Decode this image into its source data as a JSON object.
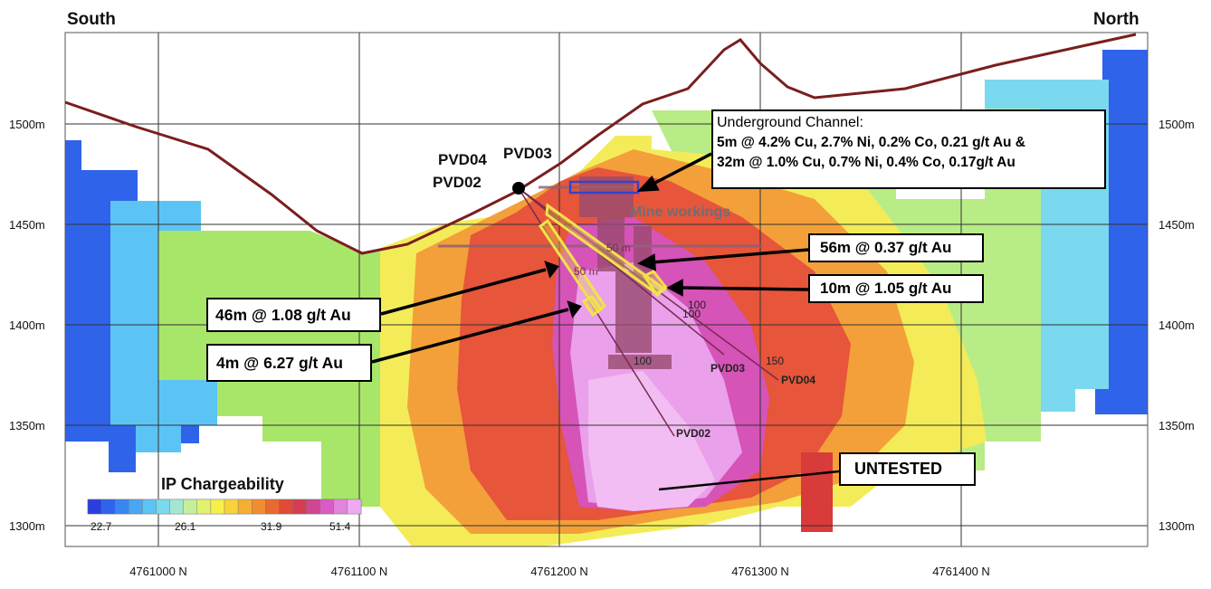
{
  "corner_labels": {
    "left": "South",
    "right": "North"
  },
  "y_axis": {
    "ticks": [
      {
        "label": "1500m",
        "value": 1500
      },
      {
        "label": "1450m",
        "value": 1450
      },
      {
        "label": "1400m",
        "value": 1400
      },
      {
        "label": "1350m",
        "value": 1350
      },
      {
        "label": "1300m",
        "value": 1300
      }
    ]
  },
  "x_axis": {
    "ticks": [
      {
        "label": "4761000 N",
        "value": 4761000
      },
      {
        "label": "4761100 N",
        "value": 4761100
      },
      {
        "label": "4761200 N",
        "value": 4761200
      },
      {
        "label": "4761300 N",
        "value": 4761300
      },
      {
        "label": "4761400 N",
        "value": 4761400
      }
    ]
  },
  "drill_holes": {
    "collar_labels": [
      "PVD04",
      "PVD03",
      "PVD02"
    ],
    "traces": [
      {
        "name": "PVD02",
        "tick_labels": [
          "100"
        ]
      },
      {
        "name": "PVD03",
        "tick_labels": [
          "100"
        ]
      },
      {
        "name": "PVD04",
        "tick_labels": [
          "100",
          "150"
        ]
      }
    ],
    "faint_depth_labels": [
      "50 m",
      "50 m"
    ]
  },
  "mine_workings_label": "Mine workings",
  "callouts": {
    "underground_title": "Underground Channel:",
    "underground_line1": "5m @ 4.2% Cu, 2.7% Ni, 0.2% Co, 0.21 g/t Au  &",
    "underground_line2": "32m @ 1.0% Cu, 0.7% Ni, 0.4% Co, 0.17g/t Au",
    "c56": "56m @ 0.37 g/t Au",
    "c10": "10m @ 1.05 g/t Au",
    "c46": "46m @ 1.08 g/t Au",
    "c4": "4m @ 6.27 g/t Au",
    "untested": "UNTESTED"
  },
  "legend": {
    "title": "IP Chargeability",
    "tick_labels": [
      "22.7",
      "26.1",
      "31.9",
      "51.4"
    ],
    "colors": [
      "#2a3fe0",
      "#2f63ea",
      "#3a86f0",
      "#48a6f4",
      "#5cc4f5",
      "#7ad9ee",
      "#a5e6d2",
      "#c6ef9a",
      "#e2f26c",
      "#f6f04a",
      "#f9d23c",
      "#f6ae34",
      "#f08d32",
      "#e96a30",
      "#e24a36",
      "#d73c52",
      "#d04690",
      "#d95cc4",
      "#e283dc",
      "#eeaaf0"
    ]
  },
  "colors": {
    "topography": "#7a1e1e",
    "grid": "#333333",
    "callout_arrow": "#000000",
    "highlight_box": "#f2e24a",
    "channel_box": "#3344cc"
  }
}
